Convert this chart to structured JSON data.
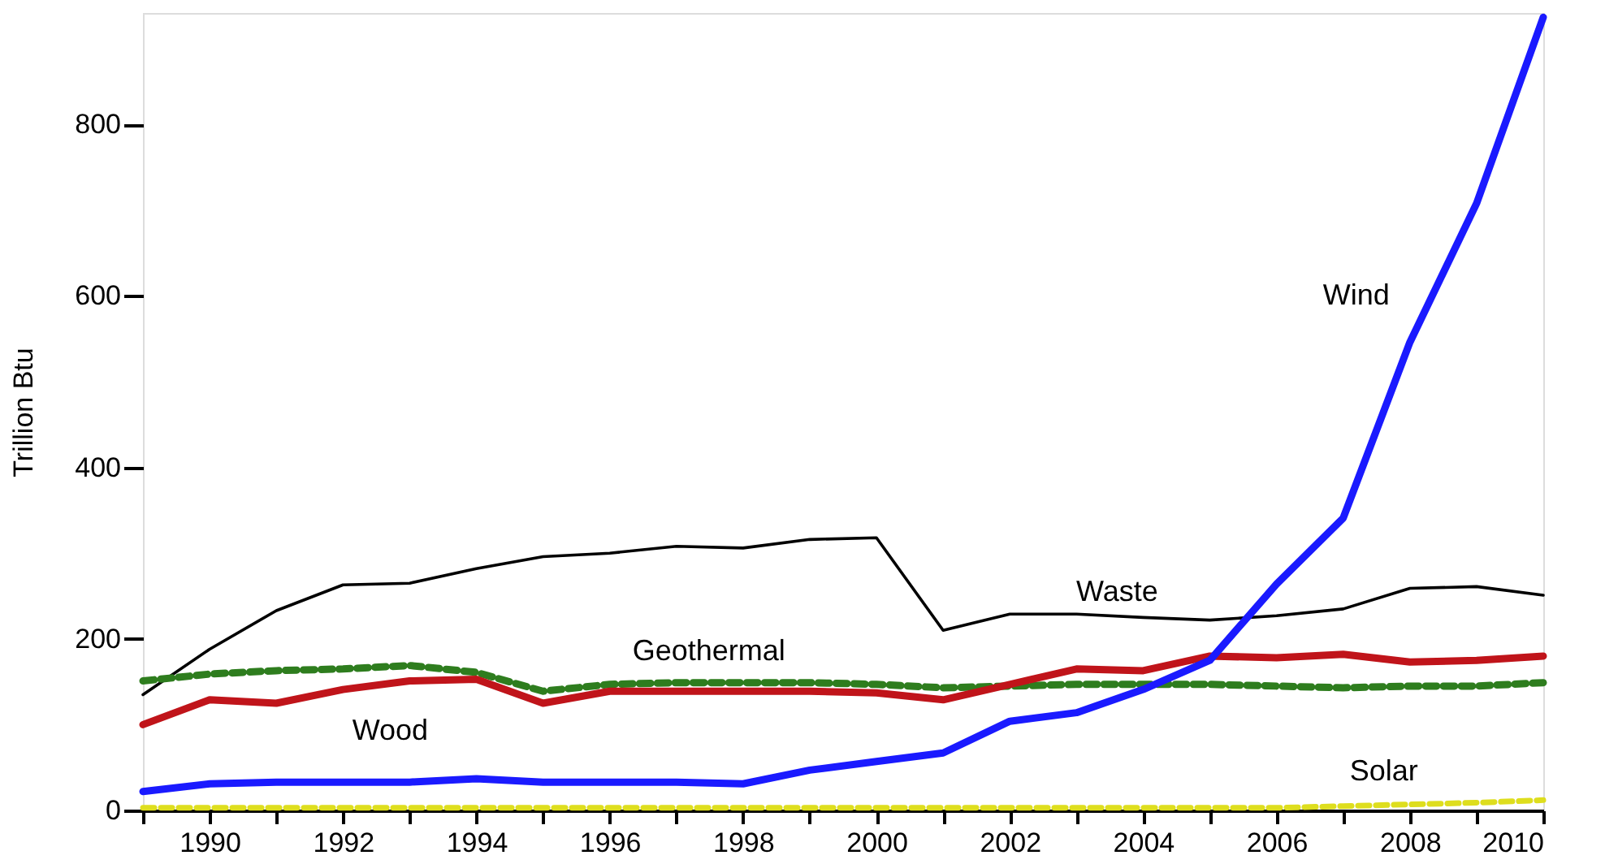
{
  "chart_data": {
    "type": "line",
    "ylabel": "Trillion Btu",
    "x": [
      1989,
      1990,
      1991,
      1992,
      1993,
      1994,
      1995,
      1996,
      1997,
      1998,
      1999,
      2000,
      2001,
      2002,
      2003,
      2004,
      2005,
      2006,
      2007,
      2008,
      2009,
      2010
    ],
    "series": [
      {
        "name": "Waste",
        "color": "#000000",
        "line_style": "solid",
        "values": [
          135,
          188,
          233,
          263,
          265,
          282,
          296,
          300,
          308,
          306,
          316,
          318,
          210,
          229,
          229,
          225,
          222,
          227,
          235,
          259,
          261,
          251
        ]
      },
      {
        "name": "Geothermal",
        "color": "#2e7d1e",
        "line_style": "dashed",
        "values": [
          151,
          159,
          163,
          165,
          169,
          161,
          139,
          147,
          149,
          149,
          149,
          147,
          143,
          145,
          147,
          147,
          147,
          145,
          143,
          145,
          145,
          149
        ]
      },
      {
        "name": "Wood",
        "color": "#c0141a",
        "line_style": "solid",
        "values": [
          100,
          129,
          125,
          141,
          151,
          153,
          125,
          139,
          139,
          139,
          139,
          137,
          129,
          147,
          165,
          163,
          180,
          178,
          182,
          173,
          175,
          180
        ]
      },
      {
        "name": "Wind",
        "color": "#1a1aff",
        "line_style": "solid",
        "values": [
          22,
          31,
          33,
          33,
          33,
          37,
          33,
          33,
          33,
          31,
          47,
          57,
          67,
          104,
          114,
          141,
          175,
          264,
          341,
          546,
          708,
          925
        ]
      },
      {
        "name": "Solar",
        "color": "#dede1e",
        "line_style": "dashed",
        "values": [
          3,
          3,
          3,
          3,
          3,
          3,
          3,
          3,
          3,
          3,
          3,
          3,
          3,
          3,
          3,
          3,
          3,
          3,
          5,
          7,
          9,
          12
        ]
      }
    ],
    "xlim": [
      1989,
      2010
    ],
    "ylim": [
      0,
      930
    ],
    "xticks": [
      {
        "value": 1989,
        "label": null
      },
      1990,
      {
        "value": 1991,
        "label": null
      },
      1992,
      {
        "value": 1993,
        "label": null
      },
      1994,
      {
        "value": 1995,
        "label": null
      },
      1996,
      {
        "value": 1997,
        "label": null
      },
      1998,
      {
        "value": 1999,
        "label": null
      },
      2000,
      {
        "value": 2001,
        "label": null
      },
      2002,
      {
        "value": 2003,
        "label": null
      },
      2004,
      {
        "value": 2005,
        "label": null
      },
      2006,
      {
        "value": 2007,
        "label": null
      },
      2008,
      {
        "value": 2009,
        "label": null
      },
      2010
    ],
    "yticks": [
      0,
      200,
      400,
      600,
      800
    ],
    "grid": false,
    "marker": "none"
  }
}
